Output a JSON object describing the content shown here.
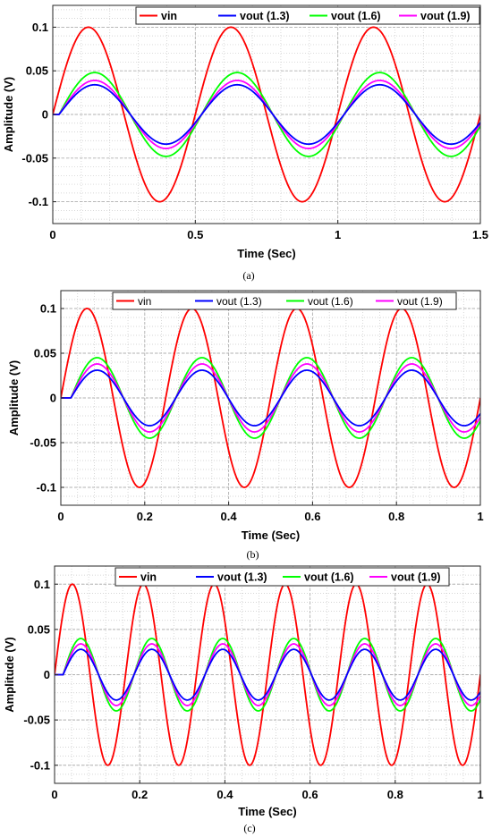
{
  "chart_data": [
    {
      "type": "line",
      "xlabel": "Time (Sec)",
      "ylabel": "Amplitude (V)",
      "caption": "(a)",
      "xlim": [
        0,
        1.5
      ],
      "ylim": [
        -0.125,
        0.125
      ],
      "xticks": [
        0,
        0.5,
        1,
        1.5
      ],
      "xtick_labels": [
        "0",
        "0.5",
        "1",
        "1.5"
      ],
      "yticks": [
        -0.1,
        -0.05,
        0,
        0.05,
        0.1
      ],
      "ytick_labels": [
        "-0.1",
        "-0.05",
        "0",
        "0.05",
        "0.1"
      ],
      "grid": true,
      "minor_grid": true,
      "legend_position": "top-right",
      "legend_bold": true,
      "frequency_hz": 2,
      "series": [
        {
          "name": "vin",
          "color": "#ff0000",
          "amplitude": 0.1,
          "phase_lag_sec": 0
        },
        {
          "name": "vout (1.3)",
          "color": "#0000ff",
          "amplitude": 0.034,
          "phase_lag_sec": 0.022
        },
        {
          "name": "vout (1.6)",
          "color": "#00ff00",
          "amplitude": 0.048,
          "phase_lag_sec": 0.022
        },
        {
          "name": "vout (1.9)",
          "color": "#ff00ff",
          "amplitude": 0.039,
          "phase_lag_sec": 0.022
        }
      ]
    },
    {
      "type": "line",
      "xlabel": "Time (Sec)",
      "ylabel": "Amplitude (V)",
      "caption": "(b)",
      "xlim": [
        0,
        1
      ],
      "ylim": [
        -0.12,
        0.12
      ],
      "xticks": [
        0,
        0.2,
        0.4,
        0.6,
        0.8,
        1
      ],
      "xtick_labels": [
        "0",
        "0.2",
        "0.4",
        "0.6",
        "0.8",
        "1"
      ],
      "yticks": [
        -0.1,
        -0.05,
        0,
        0.05,
        0.1
      ],
      "ytick_labels": [
        "-0.1",
        "-0.05",
        "0",
        "0.05",
        "0.1"
      ],
      "grid": true,
      "minor_grid": true,
      "legend_position": "top",
      "legend_bold": false,
      "frequency_hz": 4,
      "series": [
        {
          "name": "vin",
          "color": "#ff0000",
          "amplitude": 0.1,
          "phase_lag_sec": 0
        },
        {
          "name": "vout (1.3)",
          "color": "#0000ff",
          "amplitude": 0.031,
          "phase_lag_sec": 0.024
        },
        {
          "name": "vout (1.6)",
          "color": "#00ff00",
          "amplitude": 0.045,
          "phase_lag_sec": 0.024
        },
        {
          "name": "vout (1.9)",
          "color": "#ff00ff",
          "amplitude": 0.038,
          "phase_lag_sec": 0.024
        }
      ]
    },
    {
      "type": "line",
      "xlabel": "Time (Sec)",
      "ylabel": "Amplitude (V)",
      "caption": "(c)",
      "xlim": [
        0,
        1
      ],
      "ylim": [
        -0.12,
        0.12
      ],
      "xticks": [
        0,
        0.2,
        0.4,
        0.6,
        0.8,
        1
      ],
      "xtick_labels": [
        "0",
        "0.2",
        "0.4",
        "0.6",
        "0.8",
        "1"
      ],
      "yticks": [
        -0.1,
        -0.05,
        0,
        0.05,
        0.1
      ],
      "ytick_labels": [
        "-0.1",
        "-0.05",
        "0",
        "0.05",
        "0.1"
      ],
      "grid": true,
      "minor_grid": true,
      "legend_position": "top",
      "legend_bold": true,
      "frequency_hz": 6,
      "series": [
        {
          "name": "vin",
          "color": "#ff0000",
          "amplitude": 0.1,
          "phase_lag_sec": 0
        },
        {
          "name": "vout (1.3)",
          "color": "#0000ff",
          "amplitude": 0.028,
          "phase_lag_sec": 0.02
        },
        {
          "name": "vout (1.6)",
          "color": "#00ff00",
          "amplitude": 0.04,
          "phase_lag_sec": 0.02
        },
        {
          "name": "vout (1.9)",
          "color": "#ff00ff",
          "amplitude": 0.034,
          "phase_lag_sec": 0.02
        }
      ]
    }
  ]
}
